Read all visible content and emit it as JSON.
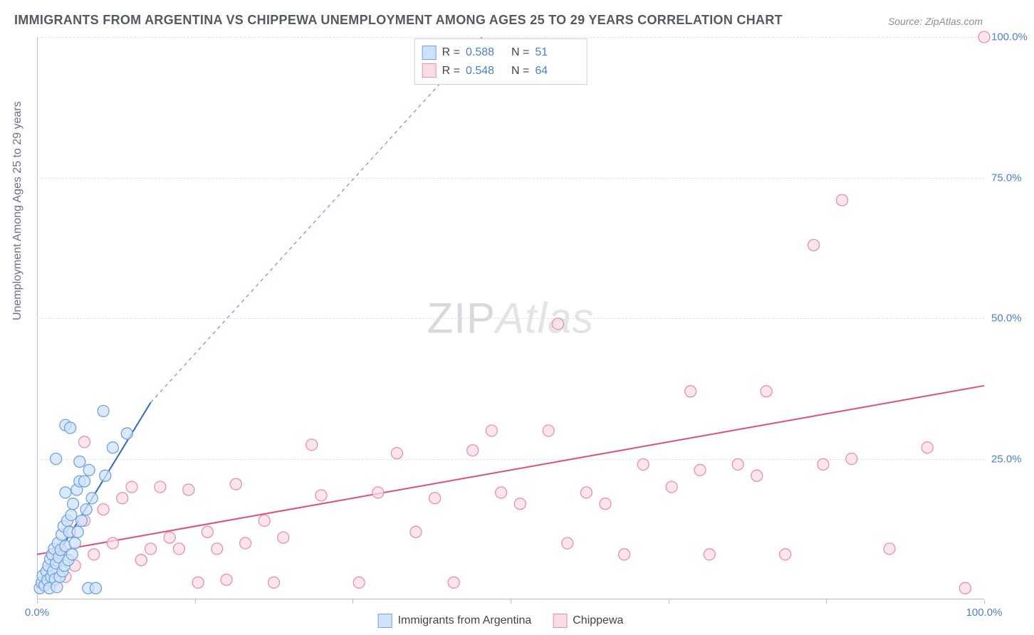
{
  "title": "IMMIGRANTS FROM ARGENTINA VS CHIPPEWA UNEMPLOYMENT AMONG AGES 25 TO 29 YEARS CORRELATION CHART",
  "source": "Source: ZipAtlas.com",
  "ylabel": "Unemployment Among Ages 25 to 29 years",
  "watermark_a": "ZIP",
  "watermark_b": "Atlas",
  "chart": {
    "type": "scatter",
    "background_color": "#ffffff",
    "grid_color": "#dfe3e9",
    "axis_color": "#b7c0cc",
    "xlim": [
      0,
      100
    ],
    "ylim": [
      0,
      100
    ],
    "xtick_positions": [
      0,
      16.7,
      33.3,
      50,
      66.7,
      83.3,
      100
    ],
    "xtick_labels": [
      "0.0%",
      "",
      "",
      "",
      "",
      "",
      "100.0%"
    ],
    "ytick_positions": [
      25,
      50,
      75,
      100
    ],
    "ytick_labels": [
      "25.0%",
      "50.0%",
      "75.0%",
      "100.0%"
    ],
    "marker_radius": 8,
    "marker_stroke_width": 1.3,
    "line_width": 2,
    "dash_pattern": "5,5"
  },
  "series": {
    "argentina": {
      "label": "Immigrants from Argentina",
      "fill": "#cfe2f9",
      "stroke": "#6fa3e2",
      "line_color": "#2b68c4",
      "R": "0.588",
      "N": "51",
      "trend": {
        "x1": 0,
        "y1": 2,
        "x2": 12,
        "y2": 35,
        "ext_x2": 47,
        "ext_y2": 100
      },
      "points": [
        [
          0.3,
          2.0
        ],
        [
          0.5,
          3.0
        ],
        [
          0.6,
          4.2
        ],
        [
          0.8,
          2.5
        ],
        [
          1.0,
          5.0
        ],
        [
          1.1,
          3.4
        ],
        [
          1.2,
          6.0
        ],
        [
          1.3,
          2.0
        ],
        [
          1.4,
          7.2
        ],
        [
          1.5,
          4.0
        ],
        [
          1.6,
          8.0
        ],
        [
          1.7,
          5.0
        ],
        [
          1.8,
          9.0
        ],
        [
          1.9,
          3.6
        ],
        [
          2.0,
          6.4
        ],
        [
          2.1,
          2.2
        ],
        [
          2.2,
          10.0
        ],
        [
          2.3,
          7.5
        ],
        [
          2.4,
          4.0
        ],
        [
          2.5,
          8.8
        ],
        [
          2.6,
          11.5
        ],
        [
          2.7,
          5.0
        ],
        [
          2.8,
          13.0
        ],
        [
          2.9,
          6.0
        ],
        [
          3.0,
          9.5
        ],
        [
          3.0,
          31.0
        ],
        [
          3.2,
          14.0
        ],
        [
          3.3,
          7.0
        ],
        [
          3.4,
          12.0
        ],
        [
          3.5,
          30.5
        ],
        [
          3.6,
          15.0
        ],
        [
          3.7,
          8.0
        ],
        [
          3.8,
          17.0
        ],
        [
          4.0,
          10.0
        ],
        [
          4.2,
          19.5
        ],
        [
          4.3,
          12.0
        ],
        [
          4.5,
          24.5
        ],
        [
          4.5,
          21.0
        ],
        [
          4.7,
          14.0
        ],
        [
          5.0,
          21.0
        ],
        [
          5.2,
          16.0
        ],
        [
          5.4,
          2.0
        ],
        [
          5.5,
          23.0
        ],
        [
          5.8,
          18.0
        ],
        [
          6.2,
          2.0
        ],
        [
          7.0,
          33.5
        ],
        [
          7.2,
          22.0
        ],
        [
          8.0,
          27.0
        ],
        [
          9.5,
          29.5
        ],
        [
          2.0,
          25.0
        ],
        [
          3.0,
          19.0
        ]
      ]
    },
    "chippewa": {
      "label": "Chippewa",
      "fill": "#fbdce5",
      "stroke": "#ea8fae",
      "line_color": "#e44a7d",
      "R": "0.548",
      "N": "64",
      "trend": {
        "x1": 0,
        "y1": 8,
        "x2": 100,
        "y2": 38
      },
      "points": [
        [
          1.0,
          5.0
        ],
        [
          1.5,
          3.0
        ],
        [
          2.0,
          7.0
        ],
        [
          2.5,
          9.0
        ],
        [
          3.0,
          4.0
        ],
        [
          3.5,
          12.0
        ],
        [
          4.0,
          6.0
        ],
        [
          5.0,
          14.0
        ],
        [
          5.0,
          28.0
        ],
        [
          6.0,
          8.0
        ],
        [
          7.0,
          16.0
        ],
        [
          8.0,
          10.0
        ],
        [
          9.0,
          18.0
        ],
        [
          10.0,
          20.0
        ],
        [
          11.0,
          7.0
        ],
        [
          12.0,
          9.0
        ],
        [
          13.0,
          20.0
        ],
        [
          14.0,
          11.0
        ],
        [
          15.0,
          9.0
        ],
        [
          16.0,
          19.5
        ],
        [
          17.0,
          3.0
        ],
        [
          18.0,
          12.0
        ],
        [
          19.0,
          9.0
        ],
        [
          20.0,
          3.5
        ],
        [
          21.0,
          20.5
        ],
        [
          22.0,
          10.0
        ],
        [
          24.0,
          14.0
        ],
        [
          25.0,
          3.0
        ],
        [
          26.0,
          11.0
        ],
        [
          29.0,
          27.5
        ],
        [
          30.0,
          18.5
        ],
        [
          34.0,
          3.0
        ],
        [
          36.0,
          19.0
        ],
        [
          38.0,
          26.0
        ],
        [
          40.0,
          12.0
        ],
        [
          42.0,
          18.0
        ],
        [
          44.0,
          3.0
        ],
        [
          46.0,
          26.5
        ],
        [
          48.0,
          30.0
        ],
        [
          49.0,
          19.0
        ],
        [
          51.0,
          17.0
        ],
        [
          54.0,
          30.0
        ],
        [
          55.0,
          49.0
        ],
        [
          56.0,
          10.0
        ],
        [
          58.0,
          19.0
        ],
        [
          60.0,
          17.0
        ],
        [
          62.0,
          8.0
        ],
        [
          64.0,
          24.0
        ],
        [
          67.0,
          20.0
        ],
        [
          69.0,
          37.0
        ],
        [
          70.0,
          23.0
        ],
        [
          71.0,
          8.0
        ],
        [
          74.0,
          24.0
        ],
        [
          76.0,
          22.0
        ],
        [
          77.0,
          37.0
        ],
        [
          79.0,
          8.0
        ],
        [
          82.0,
          63.0
        ],
        [
          83.0,
          24.0
        ],
        [
          85.0,
          71.0
        ],
        [
          86.0,
          25.0
        ],
        [
          90.0,
          9.0
        ],
        [
          94.0,
          27.0
        ],
        [
          98.0,
          2.0
        ],
        [
          100.0,
          100.0
        ]
      ]
    }
  },
  "labels": {
    "R": "R =",
    "N": "N ="
  }
}
